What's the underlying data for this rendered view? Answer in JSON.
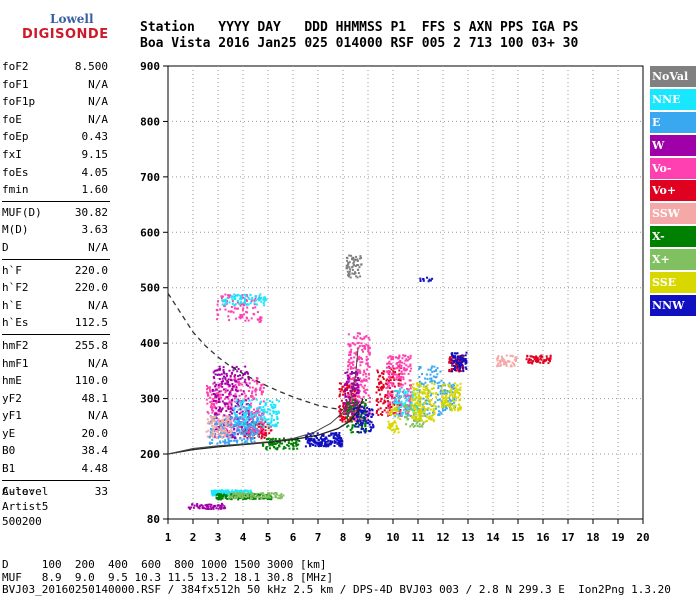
{
  "logo": {
    "brand": "Lowell",
    "name": "DIGISONDE"
  },
  "header": {
    "line1": "Station   YYYY DAY   DDD HHMMSS P1  FFS S AXN PPS IGA PS",
    "line2": "Boa Vista 2016 Jan25 025 014000 RSF 005 2 713 100 03+ 30"
  },
  "params": {
    "group1": [
      {
        "k": "foF2",
        "v": "8.500"
      },
      {
        "k": "foF1",
        "v": "N/A"
      },
      {
        "k": "foF1p",
        "v": "N/A"
      },
      {
        "k": "foE",
        "v": "N/A"
      },
      {
        "k": "foEp",
        "v": "0.43"
      },
      {
        "k": "fxI",
        "v": "9.15"
      },
      {
        "k": "foEs",
        "v": "4.05"
      },
      {
        "k": "fmin",
        "v": "1.60"
      }
    ],
    "group2": [
      {
        "k": "MUF(D)",
        "v": "30.82"
      },
      {
        "k": "M(D)",
        "v": "3.63"
      },
      {
        "k": "D",
        "v": "N/A"
      }
    ],
    "group3": [
      {
        "k": "h`F",
        "v": "220.0"
      },
      {
        "k": "h`F2",
        "v": "220.0"
      },
      {
        "k": "h`E",
        "v": "N/A"
      },
      {
        "k": "h`Es",
        "v": "112.5"
      }
    ],
    "group4": [
      {
        "k": "hmF2",
        "v": "255.8"
      },
      {
        "k": "hmF1",
        "v": "N/A"
      },
      {
        "k": "hmE",
        "v": "110.0"
      },
      {
        "k": "yF2",
        "v": "48.1"
      },
      {
        "k": "yF1",
        "v": "N/A"
      },
      {
        "k": "yE",
        "v": "20.0"
      },
      {
        "k": "B0",
        "v": "38.4"
      },
      {
        "k": "B1",
        "v": "4.48"
      }
    ],
    "group5": [
      {
        "k": "C-level",
        "v": "33"
      }
    ]
  },
  "auto": {
    "line1": "Auto:",
    "line2": "Artist5",
    "line3": "500200"
  },
  "legend": [
    {
      "label": "NoVal",
      "color": "#808080"
    },
    {
      "label": "NNE",
      "color": "#19e6ff"
    },
    {
      "label": "E",
      "color": "#3aa8f0"
    },
    {
      "label": "W",
      "color": "#a000a8"
    },
    {
      "label": "Vo-",
      "color": "#ff40b0"
    },
    {
      "label": "Vo+",
      "color": "#e00020"
    },
    {
      "label": "SSW",
      "color": "#f4a8a8"
    },
    {
      "label": "X-",
      "color": "#008000"
    },
    {
      "label": "X+",
      "color": "#80c060"
    },
    {
      "label": "SSE",
      "color": "#d8d800"
    },
    {
      "label": "NNW",
      "color": "#1010c0"
    }
  ],
  "chart_data": {
    "type": "scatter",
    "title": "",
    "xlabel": "",
    "ylabel": "",
    "xlim": [
      1,
      20
    ],
    "ylim": [
      80,
      900
    ],
    "x_ticks": [
      1,
      2,
      3,
      4,
      5,
      6,
      7,
      8,
      9,
      10,
      11,
      12,
      13,
      14,
      15,
      16,
      17,
      18,
      19,
      20
    ],
    "y_ticks": [
      80,
      200,
      300,
      400,
      500,
      600,
      700,
      800,
      900
    ],
    "grid": "dotted",
    "legend_position": "right",
    "series": [
      {
        "color": "#e00020",
        "clusters": [
          [
            4.5,
            230,
            260,
            1.2,
            25
          ],
          [
            8.2,
            260,
            330,
            0.8,
            40
          ],
          [
            9.8,
            270,
            360,
            1.0,
            40
          ],
          [
            12.5,
            350,
            380,
            0.6,
            20
          ],
          [
            15.8,
            365,
            380,
            1.0,
            15
          ]
        ]
      },
      {
        "color": "#ff40b0",
        "clusters": [
          [
            4.0,
            240,
            340,
            1.6,
            60
          ],
          [
            8.6,
            260,
            420,
            0.9,
            60
          ],
          [
            10.2,
            270,
            380,
            1.0,
            50
          ],
          [
            2.8,
            270,
            330,
            0.6,
            20
          ],
          [
            3.8,
            440,
            490,
            1.8,
            25
          ]
        ]
      },
      {
        "color": "#a000a8",
        "clusters": [
          [
            3.5,
            230,
            360,
            1.5,
            60
          ],
          [
            8.3,
            270,
            350,
            0.6,
            25
          ],
          [
            2.5,
            100,
            110,
            1.5,
            15
          ]
        ]
      },
      {
        "color": "#19e6ff",
        "clusters": [
          [
            3.5,
            125,
            135,
            1.6,
            40
          ],
          [
            4.5,
            250,
            300,
            1.8,
            40
          ],
          [
            10.5,
            270,
            320,
            1.0,
            20
          ],
          [
            4.0,
            470,
            490,
            1.8,
            20
          ]
        ]
      },
      {
        "color": "#3aa8f0",
        "clusters": [
          [
            3.6,
            220,
            270,
            2.0,
            50
          ],
          [
            11.5,
            270,
            360,
            1.0,
            25
          ],
          [
            12.2,
            280,
            330,
            0.5,
            15
          ]
        ]
      },
      {
        "color": "#008000",
        "clusters": [
          [
            4.0,
            118,
            128,
            2.2,
            40
          ],
          [
            5.5,
            210,
            230,
            1.5,
            20
          ],
          [
            8.5,
            240,
            300,
            0.8,
            20
          ]
        ]
      },
      {
        "color": "#80c060",
        "clusters": [
          [
            4.5,
            120,
            130,
            2.2,
            25
          ],
          [
            10.8,
            250,
            290,
            0.8,
            15
          ]
        ]
      },
      {
        "color": "#d8d800",
        "clusters": [
          [
            11.2,
            260,
            330,
            1.0,
            40
          ],
          [
            12.3,
            280,
            330,
            0.8,
            25
          ],
          [
            10.0,
            240,
            290,
            0.5,
            12
          ]
        ]
      },
      {
        "color": "#1010c0",
        "clusters": [
          [
            7.2,
            215,
            240,
            1.5,
            40
          ],
          [
            8.8,
            240,
            290,
            0.8,
            20
          ],
          [
            12.6,
            350,
            385,
            0.6,
            20
          ],
          [
            11.3,
            510,
            520,
            0.5,
            3
          ]
        ]
      },
      {
        "color": "#f4a8a8",
        "clusters": [
          [
            3.0,
            230,
            270,
            1.0,
            25
          ],
          [
            14.5,
            360,
            380,
            0.8,
            12
          ]
        ]
      },
      {
        "color": "#808080",
        "clusters": [
          [
            8.4,
            520,
            560,
            0.6,
            15
          ]
        ]
      }
    ],
    "trace": [
      [
        1,
        200
      ],
      [
        2,
        210
      ],
      [
        3,
        215
      ],
      [
        4,
        218
      ],
      [
        5,
        222
      ],
      [
        6,
        228
      ],
      [
        6.8,
        238
      ],
      [
        7.5,
        255
      ],
      [
        8.0,
        275
      ],
      [
        8.3,
        300
      ],
      [
        8.5,
        340
      ],
      [
        8.6,
        390
      ]
    ],
    "dashed_curve": [
      [
        1,
        490
      ],
      [
        1.5,
        455
      ],
      [
        2,
        420
      ],
      [
        2.5,
        395
      ],
      [
        3,
        375
      ],
      [
        3.5,
        358
      ],
      [
        4,
        345
      ],
      [
        4.5,
        333
      ],
      [
        5,
        322
      ],
      [
        5.5,
        312
      ],
      [
        6,
        303
      ],
      [
        6.5,
        295
      ],
      [
        7,
        288
      ],
      [
        7.5,
        283
      ],
      [
        8,
        280
      ]
    ],
    "profile_curve": [
      [
        1,
        200
      ],
      [
        2,
        208
      ],
      [
        3,
        213
      ],
      [
        4,
        217
      ],
      [
        5,
        221
      ],
      [
        6,
        226
      ],
      [
        7,
        234
      ],
      [
        7.8,
        246
      ],
      [
        8.3,
        260
      ],
      [
        8.6,
        278
      ],
      [
        8.8,
        300
      ]
    ]
  },
  "footer": {
    "line1": "D     100  200  400  600  800 1000 1500 3000 [km]",
    "line2": "MUF   8.9  9.0  9.5 10.3 11.5 13.2 18.1 30.8 [MHz]",
    "line3": "BVJ03_20160250140000.RSF / 384fx512h 50 kHz 2.5 km / DPS-4D BVJ03 003 / 2.8 N 299.3 E  Ion2Png 1.3.20"
  }
}
